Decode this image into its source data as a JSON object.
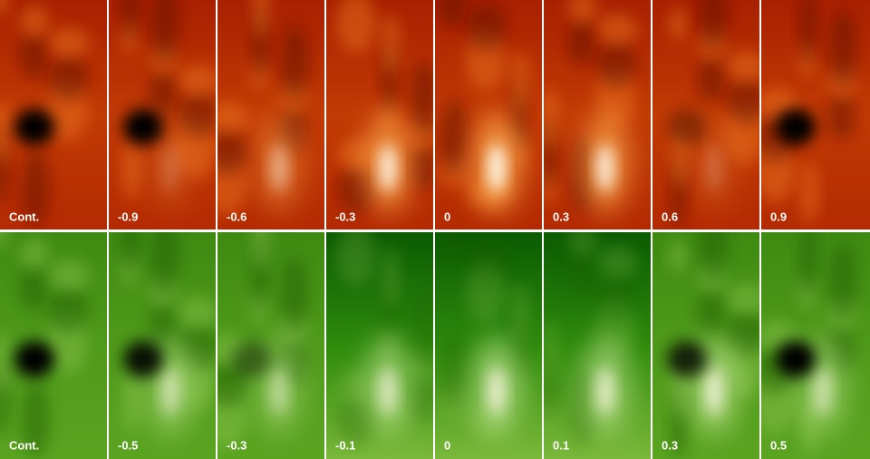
{
  "rows": [
    {
      "labels": [
        "Cont.",
        "-0.9",
        "-0.6",
        "-0.3",
        "0",
        "0.3",
        "0.6",
        "0.9"
      ]
    },
    {
      "labels": [
        "Cont.",
        "-0.5",
        "-0.3",
        "-0.1",
        "0",
        "0.1",
        "0.3",
        "0.5"
      ]
    }
  ]
}
